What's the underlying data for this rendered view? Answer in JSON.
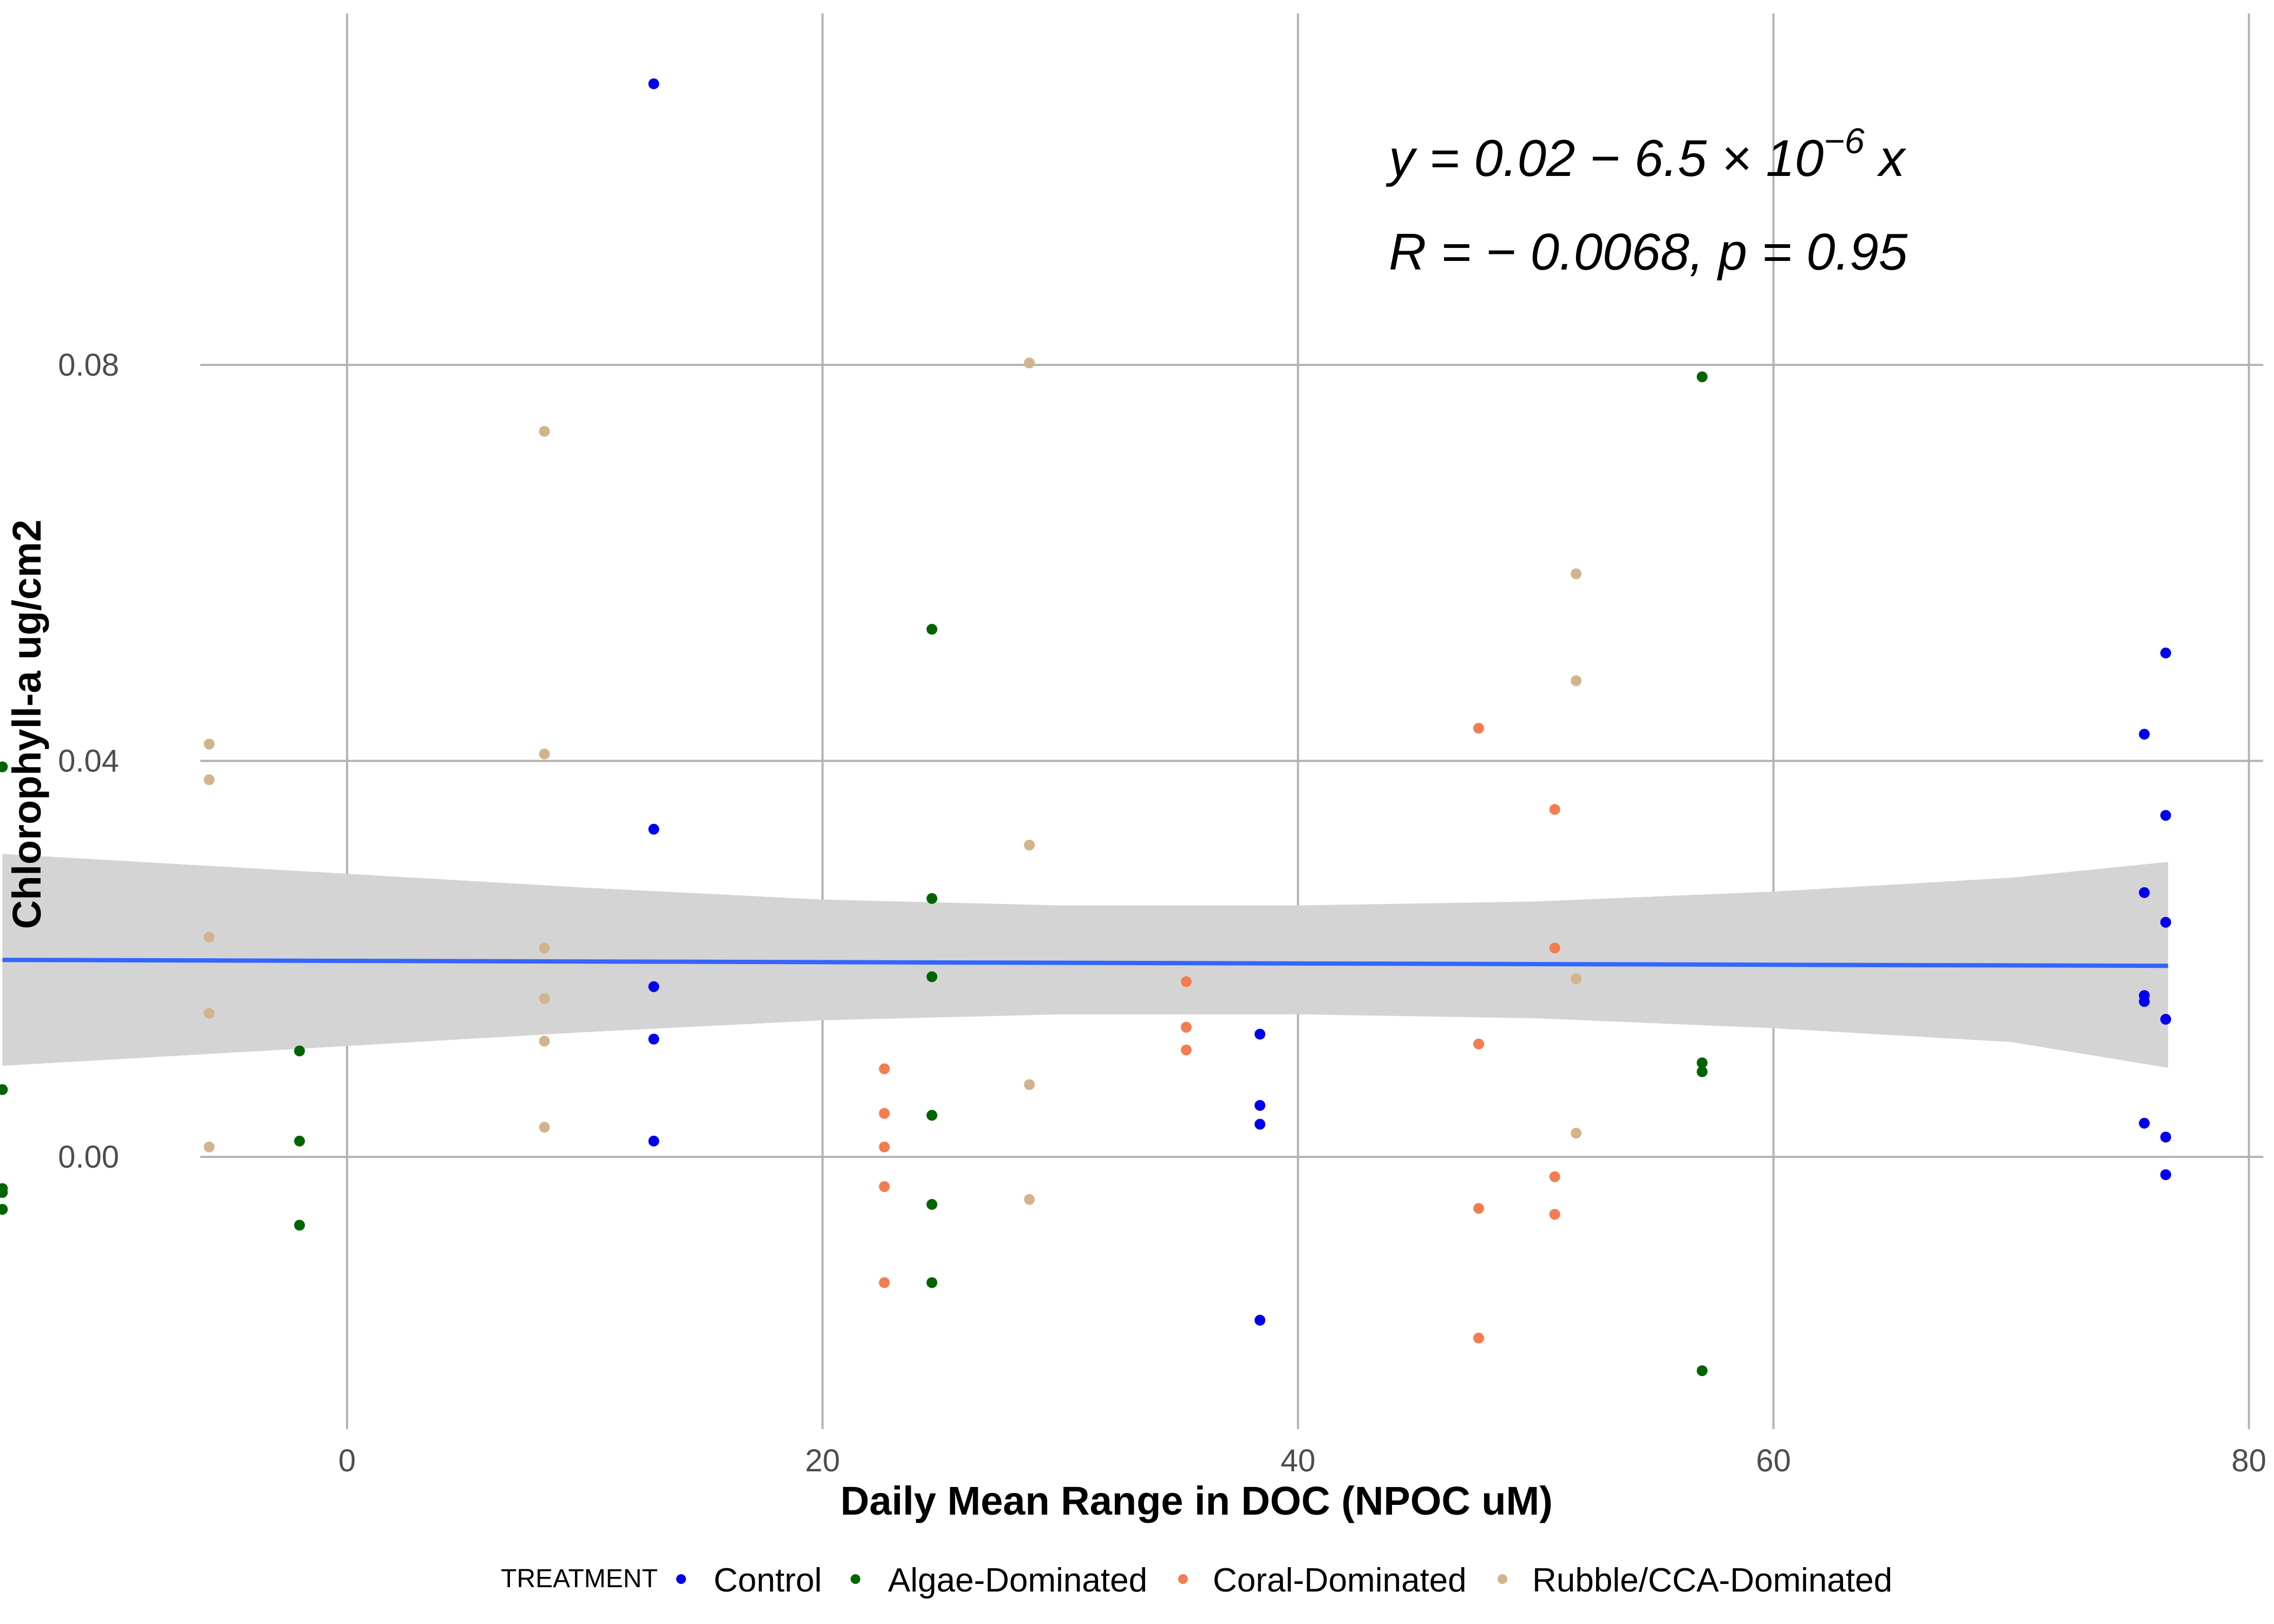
{
  "chart_data": {
    "type": "scatter",
    "xlabel": "Daily Mean Range in DOC (NPOC uM)",
    "ylabel": "Chlorophyll-a ug/cm2",
    "xlim": [
      -14.6,
      80.6
    ],
    "ylim": [
      -0.0275,
      0.1155
    ],
    "x_ticks": [
      0,
      20,
      40,
      60,
      80
    ],
    "y_ticks": [
      0.0,
      0.04,
      0.08
    ],
    "y_tick_labels": [
      "0.00",
      "0.04",
      "0.08"
    ],
    "grid": true,
    "legend": {
      "title": "TREATMENT",
      "position": "bottom",
      "entries": [
        {
          "name": "Control",
          "color": "#0000ee"
        },
        {
          "name": "Algae-Dominated",
          "color": "#006400"
        },
        {
          "name": "Coral-Dominated",
          "color": "#f47c51"
        },
        {
          "name": "Rubble/CCA-Dominated",
          "color": "#d2b48c"
        }
      ]
    },
    "annotation": {
      "equation": {
        "prefix": "y = 0.02 − 6.5 × 10",
        "exponent": "−6",
        "suffix": " x"
      },
      "stats": "R = − 0.0068, p = 0.95"
    },
    "regression": {
      "color": "#3366ff",
      "band_color": "#d4d4d4",
      "x": [
        -14.5,
        76.6
      ],
      "y": [
        0.0199,
        0.0193
      ],
      "band_x": [
        -14.5,
        0,
        10,
        20,
        30,
        40,
        50,
        60,
        70,
        76.6
      ],
      "band_upper": [
        0.0306,
        0.0286,
        0.0272,
        0.026,
        0.0254,
        0.0254,
        0.0258,
        0.0268,
        0.0282,
        0.0298
      ],
      "band_lower": [
        0.0092,
        0.0112,
        0.0126,
        0.0138,
        0.0144,
        0.0144,
        0.014,
        0.013,
        0.0116,
        0.009
      ]
    },
    "series": [
      {
        "name": "Control",
        "color": "#0000ee",
        "points": [
          [
            12.9,
            0.1084
          ],
          [
            12.9,
            0.0331
          ],
          [
            12.9,
            0.0172
          ],
          [
            12.9,
            0.0119
          ],
          [
            12.9,
            0.0016
          ],
          [
            38.4,
            0.0124
          ],
          [
            38.4,
            0.0052
          ],
          [
            38.4,
            0.0033
          ],
          [
            38.4,
            -0.0165
          ],
          [
            75.6,
            0.0427
          ],
          [
            75.6,
            0.0267
          ],
          [
            75.6,
            0.0163
          ],
          [
            75.6,
            0.0157
          ],
          [
            75.6,
            0.0034
          ],
          [
            76.5,
            0.0509
          ],
          [
            76.5,
            0.0345
          ],
          [
            76.5,
            0.0237
          ],
          [
            76.5,
            0.0139
          ],
          [
            76.5,
            0.002
          ],
          [
            76.5,
            -0.0018
          ]
        ]
      },
      {
        "name": "Algae-Dominated",
        "color": "#006400",
        "points": [
          [
            -14.5,
            0.0394
          ],
          [
            -14.5,
            0.0068
          ],
          [
            -14.5,
            -0.0032
          ],
          [
            -14.5,
            -0.0036
          ],
          [
            -14.5,
            -0.0053
          ],
          [
            -2.0,
            0.0107
          ],
          [
            -2.0,
            0.0016
          ],
          [
            -2.0,
            -0.0069
          ],
          [
            24.6,
            0.0533
          ],
          [
            24.6,
            0.0261
          ],
          [
            24.6,
            0.0182
          ],
          [
            24.6,
            0.0042
          ],
          [
            24.6,
            -0.0048
          ],
          [
            24.6,
            -0.0127
          ],
          [
            57.0,
            0.0788
          ],
          [
            57.0,
            0.0095
          ],
          [
            57.0,
            0.0086
          ],
          [
            57.0,
            -0.0216
          ]
        ]
      },
      {
        "name": "Coral-Dominated",
        "color": "#f47c51",
        "points": [
          [
            22.6,
            0.0089
          ],
          [
            22.6,
            0.0044
          ],
          [
            22.6,
            0.001
          ],
          [
            22.6,
            -0.003
          ],
          [
            22.6,
            -0.0127
          ],
          [
            35.3,
            0.0177
          ],
          [
            35.3,
            0.0131
          ],
          [
            35.3,
            0.0108
          ],
          [
            47.6,
            0.0433
          ],
          [
            47.6,
            0.0114
          ],
          [
            47.6,
            -0.0052
          ],
          [
            47.6,
            -0.0183
          ],
          [
            50.8,
            0.0351
          ],
          [
            50.8,
            0.0211
          ],
          [
            50.8,
            -0.002
          ],
          [
            50.8,
            -0.0058
          ]
        ]
      },
      {
        "name": "Rubble/CCA-Dominated",
        "color": "#d2b48c",
        "points": [
          [
            -5.8,
            0.0417
          ],
          [
            -5.8,
            0.0381
          ],
          [
            -5.8,
            0.0222
          ],
          [
            -5.8,
            0.0145
          ],
          [
            -5.8,
            0.001
          ],
          [
            8.3,
            0.0733
          ],
          [
            8.3,
            0.0407
          ],
          [
            8.3,
            0.0211
          ],
          [
            8.3,
            0.016
          ],
          [
            8.3,
            0.0117
          ],
          [
            8.3,
            0.003
          ],
          [
            28.7,
            0.0802
          ],
          [
            28.7,
            0.0315
          ],
          [
            28.7,
            0.0073
          ],
          [
            28.7,
            -0.0043
          ],
          [
            51.7,
            0.0589
          ],
          [
            51.7,
            0.0481
          ],
          [
            51.7,
            0.018
          ],
          [
            51.7,
            0.0024
          ]
        ]
      }
    ]
  }
}
